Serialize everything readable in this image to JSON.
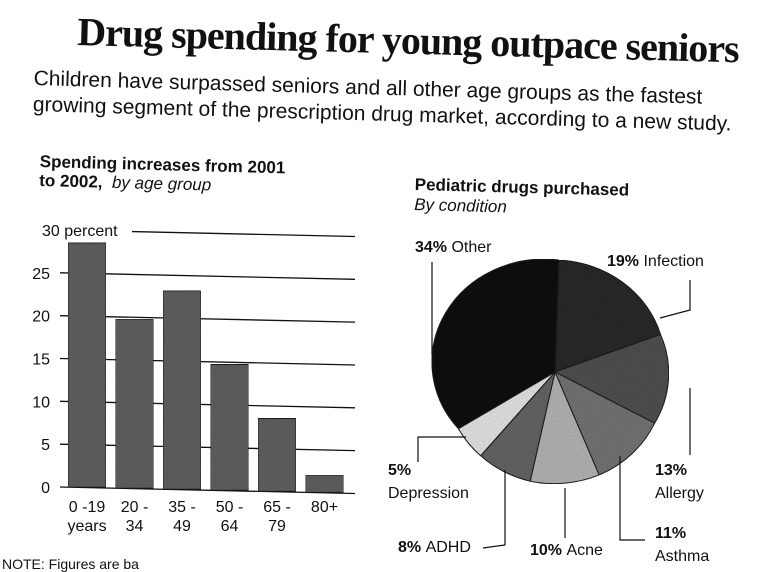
{
  "headline": "Drug spending for young outpace seniors",
  "deck": {
    "line1": "Children have surpassed seniors and all other age groups as the fastest",
    "line2": "growing segment of the prescription drug market, according to a new study."
  },
  "note": "NOTE: Figures are ba",
  "chart_data": [
    {
      "type": "bar",
      "title": "Spending increases from 2001 to 2002,",
      "subtitle": "by age group",
      "title_line1": "Spending increases from 2001",
      "title_line2": "to 2002,",
      "categories": [
        [
          "0 -19",
          "years"
        ],
        [
          "20 -",
          "34"
        ],
        [
          "35 -",
          "49"
        ],
        [
          "50 -",
          "64"
        ],
        [
          "65 -",
          "79"
        ],
        [
          "80+",
          ""
        ]
      ],
      "values": [
        28.5,
        19.6,
        22.9,
        14.3,
        8,
        1.4
      ],
      "ytick_labels": [
        "0",
        "5",
        "10",
        "15",
        "20",
        "25",
        "30 percent"
      ],
      "ylim": [
        0,
        30
      ],
      "grid": true,
      "bar_color": "#666666"
    },
    {
      "type": "pie",
      "title": "Pediatric drugs purchased",
      "subtitle": "By condition",
      "slices": [
        {
          "label": "Infection",
          "pct_label": "19%",
          "value": 19,
          "color": "#2e2e2e"
        },
        {
          "label": "Allergy",
          "pct_label": "13%",
          "value": 13,
          "color": "#555555"
        },
        {
          "label": "Asthma",
          "pct_label": "11%",
          "value": 11,
          "color": "#7a7a7a"
        },
        {
          "label": "Acne",
          "pct_label": "10%",
          "value": 10,
          "color": "#bdbdbd"
        },
        {
          "label": "ADHD",
          "pct_label": "8%",
          "value": 8,
          "color": "#6a6a6a"
        },
        {
          "label": "Depression",
          "pct_label": "5%",
          "value": 5,
          "color": "#efefef"
        },
        {
          "label": "Other",
          "pct_label": "34%",
          "value": 34,
          "color": "#161616"
        }
      ]
    }
  ]
}
